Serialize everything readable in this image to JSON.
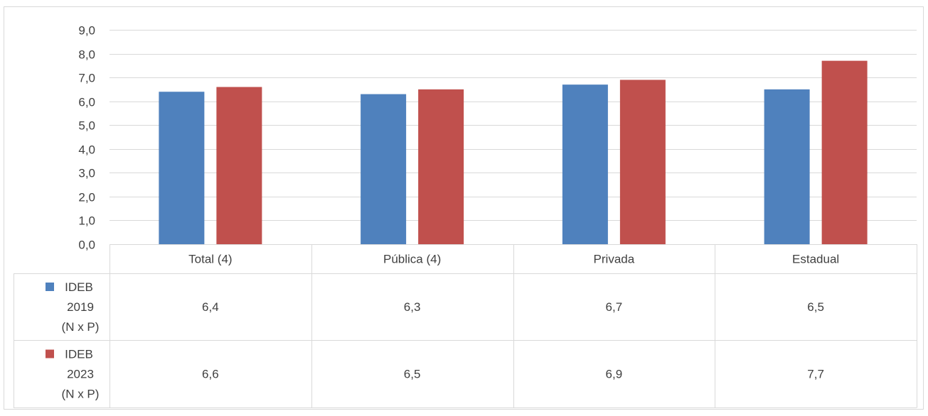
{
  "chart_data": {
    "type": "bar",
    "categories": [
      "Total (4)",
      "Pública (4)",
      "Privada",
      "Estadual"
    ],
    "series": [
      {
        "name": "IDEB 2019 (N x P)",
        "name_lines": [
          "IDEB",
          "2019",
          "(N x P)"
        ],
        "color": "#4f81bd",
        "values": [
          6.4,
          6.3,
          6.7,
          6.5
        ],
        "value_labels": [
          "6,4",
          "6,3",
          "6,7",
          "6,5"
        ]
      },
      {
        "name": "IDEB 2023 (N x P)",
        "name_lines": [
          "IDEB",
          "2023",
          "(N x P)"
        ],
        "color": "#c0504d",
        "values": [
          6.6,
          6.5,
          6.9,
          7.7
        ],
        "value_labels": [
          "6,6",
          "6,5",
          "6,9",
          "7,7"
        ]
      }
    ],
    "ylim": [
      0,
      9
    ],
    "yticks": [
      0,
      1,
      2,
      3,
      4,
      5,
      6,
      7,
      8,
      9
    ],
    "ytick_labels": [
      "0,0",
      "1,0",
      "2,0",
      "3,0",
      "4,0",
      "5,0",
      "6,0",
      "7,0",
      "8,0",
      "9,0"
    ],
    "grid": true,
    "legend": "data-table"
  }
}
